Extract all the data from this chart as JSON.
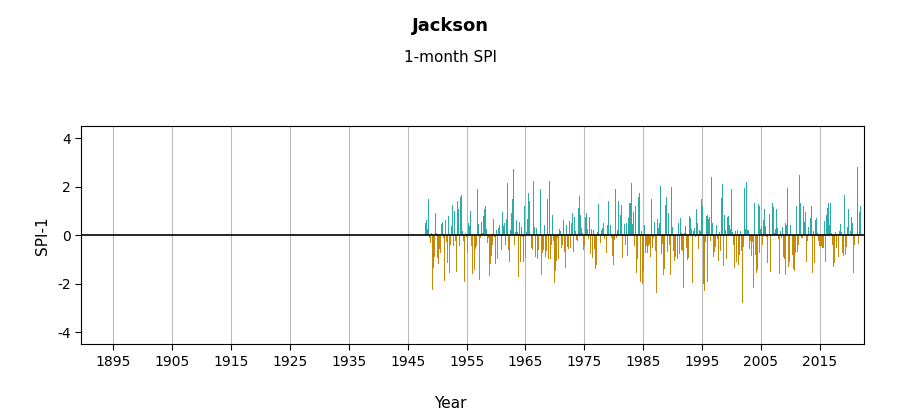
{
  "title": "Jackson",
  "subtitle": "1-month SPI",
  "ylabel": "SPI-1",
  "xlabel": "Year",
  "xlim": [
    1889.5,
    2022.5
  ],
  "ylim": [
    -4.5,
    4.5
  ],
  "yticks": [
    -4,
    -2,
    0,
    2,
    4
  ],
  "xticks": [
    1895,
    1905,
    1915,
    1925,
    1935,
    1945,
    1955,
    1965,
    1975,
    1985,
    1995,
    2005,
    2015
  ],
  "data_start_year": 1948,
  "data_end_year": 2021,
  "color_positive": "#2aada8",
  "color_negative": "#c8890a",
  "background_color": "#ffffff",
  "grid_color": "#bbbbbb",
  "title_fontsize": 13,
  "subtitle_fontsize": 11,
  "axis_label_fontsize": 11,
  "tick_fontsize": 10,
  "bar_width": 0.085,
  "seed": 42,
  "n_months": 888
}
